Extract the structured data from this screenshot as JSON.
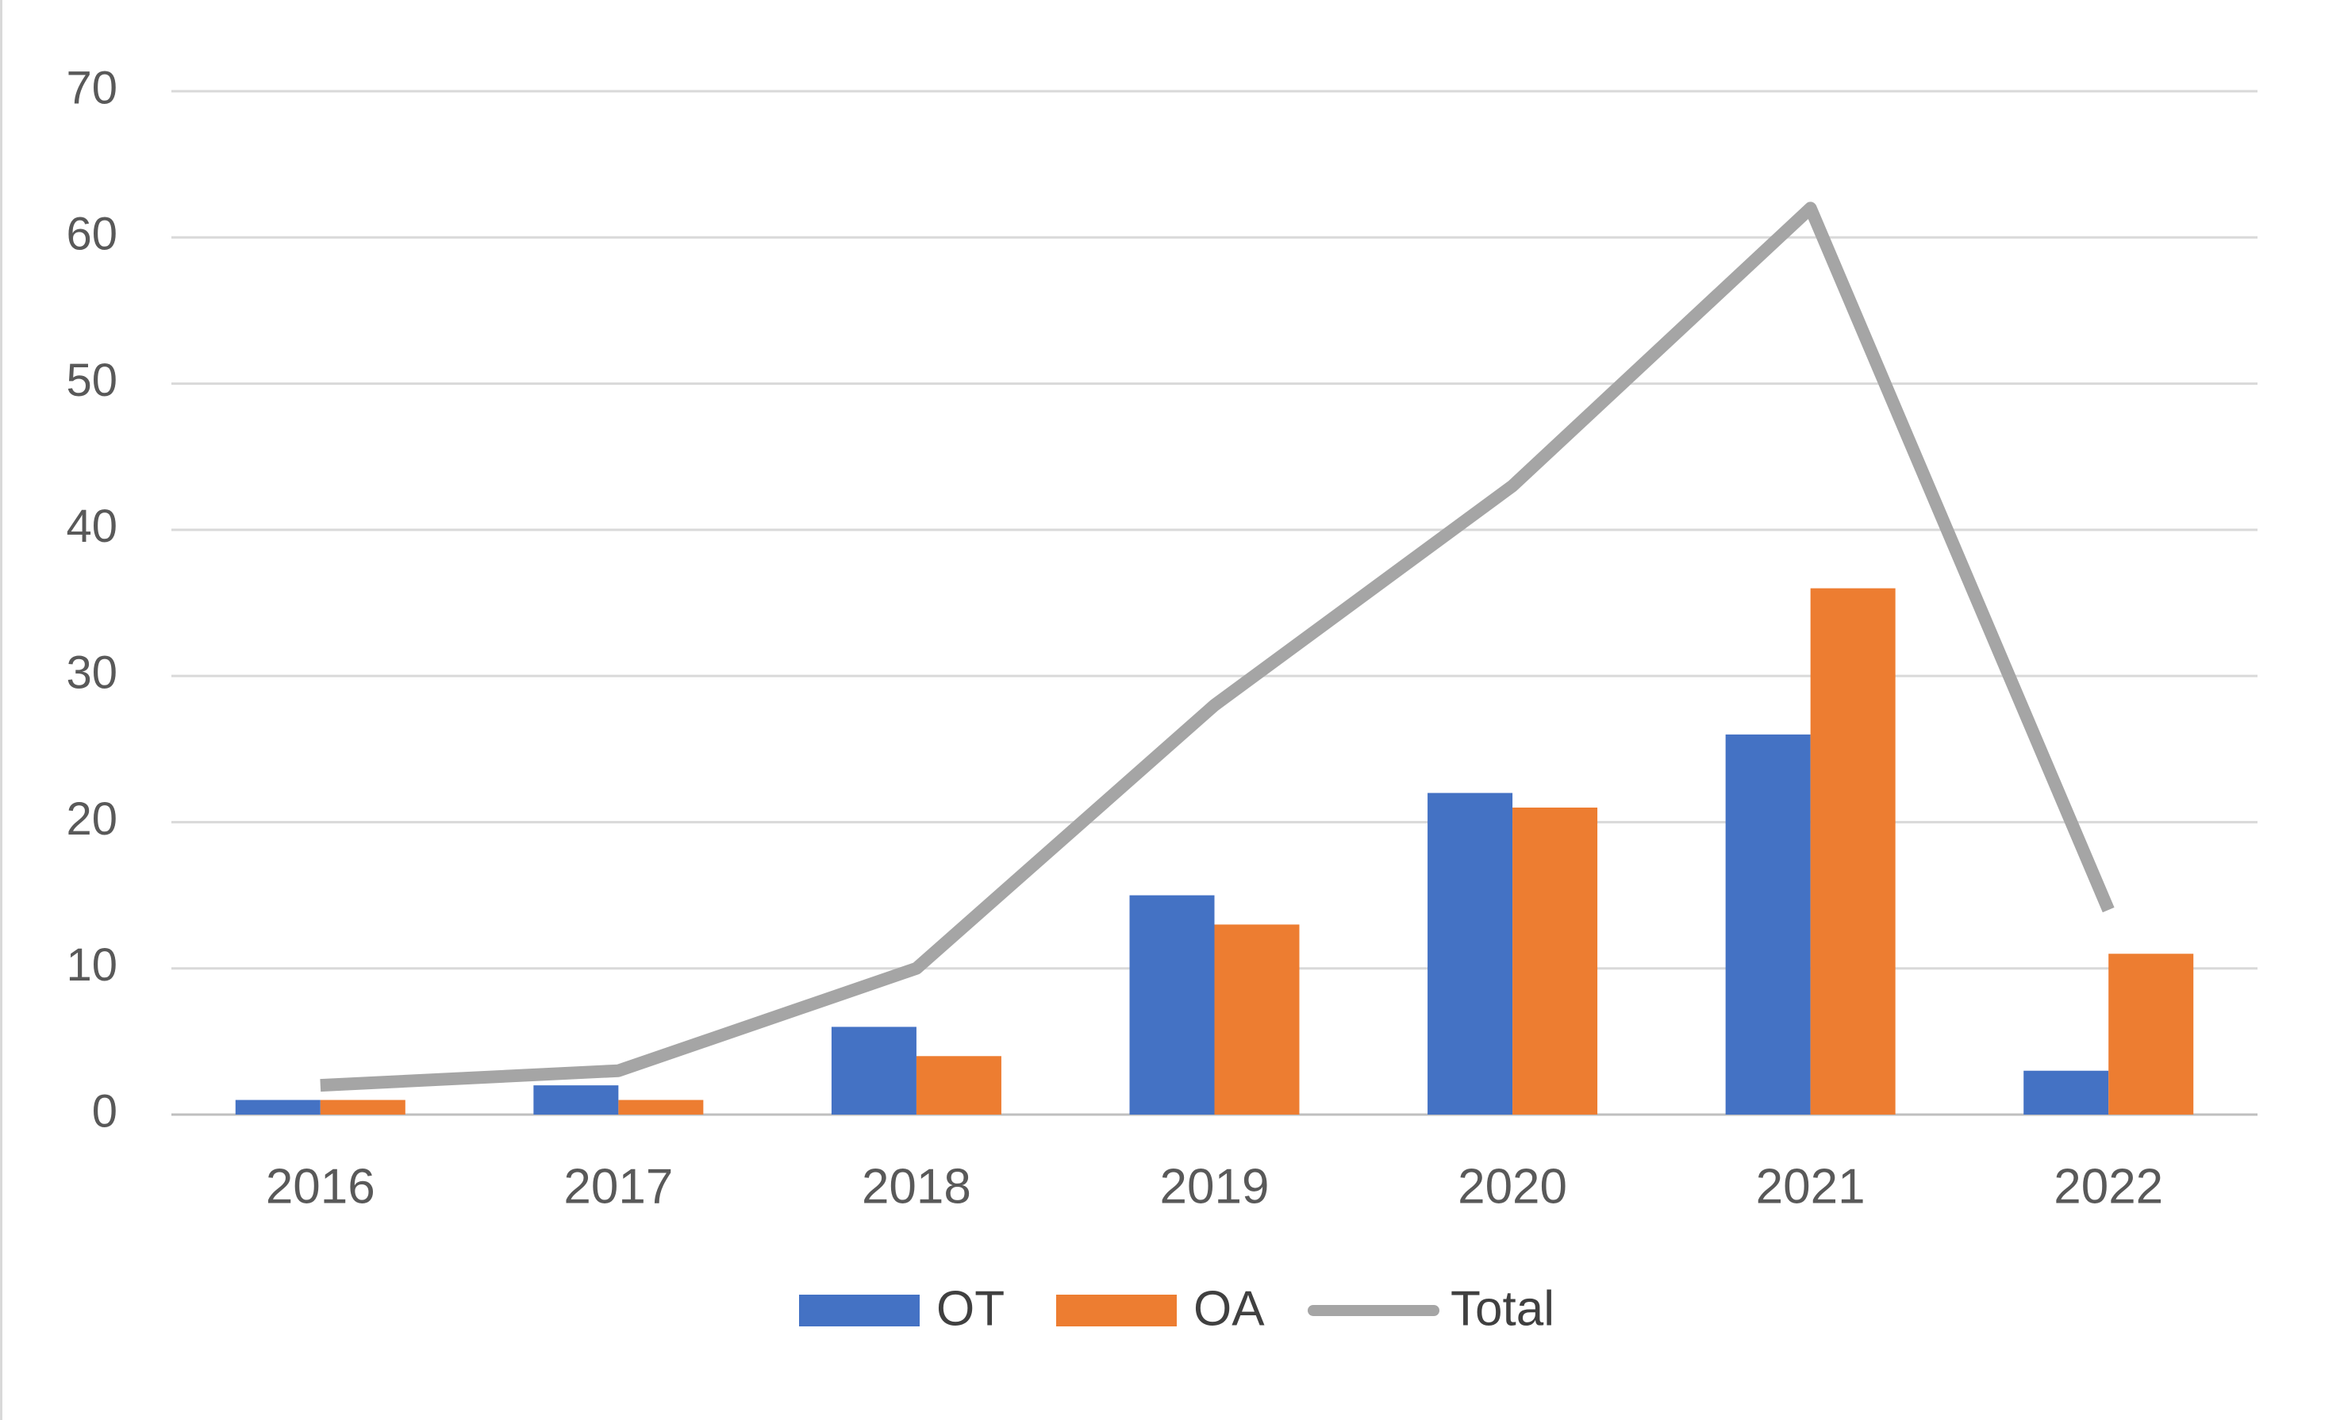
{
  "chart_data": {
    "type": "bar",
    "title": "",
    "xlabel": "",
    "ylabel": "",
    "categories": [
      "2016",
      "2017",
      "2018",
      "2019",
      "2020",
      "2021",
      "2022"
    ],
    "series": [
      {
        "name": "OT",
        "type": "bar",
        "color": "#4472C4",
        "values": [
          1,
          2,
          6,
          15,
          22,
          26,
          3
        ]
      },
      {
        "name": "OA",
        "type": "bar",
        "color": "#ED7D31",
        "values": [
          1,
          1,
          4,
          13,
          21,
          36,
          11
        ]
      },
      {
        "name": "Total",
        "type": "line",
        "color": "#A5A5A5",
        "values": [
          2,
          3,
          10,
          28,
          43,
          62,
          14
        ]
      }
    ],
    "ylim": [
      0,
      70
    ],
    "yticks": [
      "0",
      "10",
      "20",
      "30",
      "40",
      "50",
      "60",
      "70"
    ],
    "grid": true,
    "legend": {
      "position": "bottom",
      "entries": [
        "OT",
        "OA",
        "Total"
      ]
    }
  }
}
